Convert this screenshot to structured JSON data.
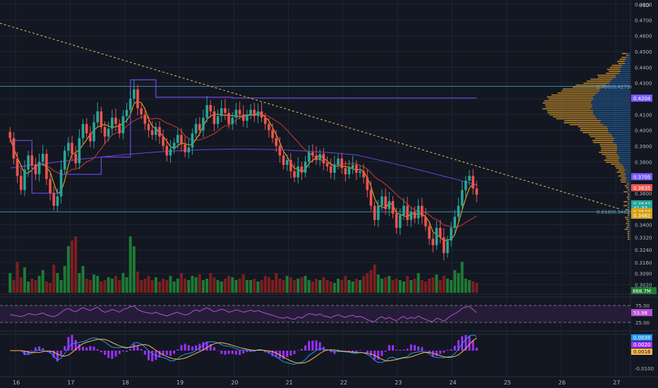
{
  "colors": {
    "background": "#131722",
    "grid": "#1f2433",
    "up": "#26a69a",
    "down": "#ef5350",
    "vol_up": "#1e7a33",
    "vol_down": "#7a1f1f",
    "vwap": "#6a45d9",
    "ma_fast": "#d4a017",
    "ma_slow": "#b3362e",
    "trendline": "#e8c547",
    "rsi": "#b74fd6",
    "macd": "#2196f3",
    "signal": "#ffb74d",
    "hist": "#9b30ff",
    "vp_up": "#2e7dcf",
    "vp_down": "#d99a2b",
    "fib": "#3f8ca6"
  },
  "chart_data": [
    {
      "type": "candlestick",
      "currency": "USD",
      "y_ticks": [
        "0.4800",
        "0.4700",
        "0.4600",
        "0.4500",
        "0.4400",
        "0.4300",
        "0.4200",
        "0.4100",
        "0.4000",
        "0.3900",
        "0.3800",
        "0.3700",
        "0.3600",
        "0.3500",
        "0.3400",
        "0.3320",
        "0.3240",
        "0.3160",
        "0.3090",
        "0.3020"
      ],
      "x_ticks": [
        "16",
        "17",
        "18",
        "19",
        "20",
        "21",
        "22",
        "23",
        "24",
        "25",
        "26",
        "27"
      ],
      "fib_levels": [
        {
          "label": "0.786(0.4279)",
          "price": 0.4279
        },
        {
          "label": "0.618(0.3482)",
          "price": 0.3482
        }
      ],
      "price_tags": [
        {
          "text": "0.4204",
          "kind": "vwap"
        },
        {
          "text": "0.3705",
          "kind": "vwap"
        },
        {
          "text": "0.3635",
          "kind": "last"
        },
        {
          "text": "0.3533",
          "kind": "up"
        },
        {
          "text": "41:33",
          "kind": "up"
        },
        {
          "text": "0.3527",
          "kind": "fast"
        },
        {
          "text": "0.3483",
          "kind": "fast"
        }
      ],
      "volume_tag": "868.7M",
      "close": [
        0.395,
        0.382,
        0.371,
        0.362,
        0.375,
        0.384,
        0.378,
        0.372,
        0.38,
        0.385,
        0.369,
        0.36,
        0.352,
        0.358,
        0.375,
        0.387,
        0.392,
        0.385,
        0.379,
        0.395,
        0.404,
        0.398,
        0.393,
        0.405,
        0.412,
        0.402,
        0.396,
        0.401,
        0.408,
        0.404,
        0.398,
        0.409,
        0.413,
        0.42,
        0.426,
        0.414,
        0.41,
        0.404,
        0.4,
        0.397,
        0.402,
        0.396,
        0.39,
        0.384,
        0.388,
        0.392,
        0.397,
        0.391,
        0.386,
        0.389,
        0.398,
        0.404,
        0.4,
        0.408,
        0.416,
        0.412,
        0.404,
        0.409,
        0.414,
        0.411,
        0.404,
        0.408,
        0.413,
        0.41,
        0.406,
        0.41,
        0.413,
        0.409,
        0.412,
        0.408,
        0.404,
        0.4,
        0.395,
        0.39,
        0.384,
        0.378,
        0.381,
        0.374,
        0.37,
        0.377,
        0.373,
        0.38,
        0.386,
        0.384,
        0.381,
        0.385,
        0.379,
        0.377,
        0.373,
        0.378,
        0.382,
        0.376,
        0.372,
        0.376,
        0.378,
        0.373,
        0.374,
        0.37,
        0.362,
        0.352,
        0.343,
        0.352,
        0.358,
        0.35,
        0.355,
        0.347,
        0.338,
        0.346,
        0.352,
        0.343,
        0.348,
        0.344,
        0.352,
        0.345,
        0.339,
        0.331,
        0.327,
        0.338,
        0.332,
        0.322,
        0.33,
        0.338,
        0.345,
        0.352,
        0.362,
        0.368,
        0.371,
        0.363,
        0.359
      ],
      "volume": [
        14,
        9,
        22,
        11,
        18,
        8,
        10,
        9,
        12,
        16,
        8,
        7,
        20,
        14,
        9,
        19,
        33,
        37,
        40,
        14,
        19,
        10,
        9,
        13,
        12,
        8,
        9,
        11,
        10,
        12,
        9,
        14,
        11,
        40,
        33,
        15,
        9,
        10,
        12,
        9,
        11,
        8,
        10,
        9,
        12,
        8,
        10,
        14,
        10,
        9,
        12,
        11,
        13,
        9,
        10,
        14,
        11,
        9,
        8,
        10,
        12,
        11,
        9,
        10,
        13,
        9,
        9,
        10,
        8,
        9,
        12,
        11,
        9,
        14,
        10,
        9,
        12,
        11,
        9,
        10,
        11,
        12,
        9,
        8,
        10,
        9,
        11,
        9,
        8,
        7,
        10,
        9,
        12,
        9,
        8,
        10,
        9,
        12,
        14,
        16,
        20,
        13,
        10,
        11,
        12,
        9,
        10,
        9,
        8,
        12,
        9,
        10,
        14,
        9,
        8,
        10,
        11,
        13,
        9,
        12,
        10,
        9,
        16,
        14,
        22,
        10,
        9,
        8,
        7
      ],
      "volume_ticks_note": "volume histogram at bottom of price pane"
    },
    {
      "type": "line",
      "indicator": "RSI",
      "y_ticks": [
        "75.00",
        "25.00"
      ],
      "value_tag": "53.98",
      "bands": [
        75,
        25
      ],
      "rsi": [
        48,
        46,
        44,
        42,
        45,
        51,
        49,
        47,
        50,
        53,
        47,
        44,
        42,
        46,
        55,
        62,
        66,
        60,
        56,
        63,
        69,
        64,
        60,
        66,
        70,
        60,
        55,
        58,
        63,
        60,
        55,
        63,
        66,
        71,
        74,
        63,
        58,
        55,
        53,
        51,
        55,
        50,
        47,
        44,
        48,
        52,
        55,
        50,
        47,
        49,
        57,
        62,
        58,
        64,
        68,
        63,
        56,
        60,
        64,
        61,
        55,
        58,
        62,
        59,
        55,
        58,
        61,
        57,
        60,
        56,
        52,
        49,
        46,
        42,
        39,
        37,
        41,
        36,
        34,
        41,
        38,
        45,
        51,
        49,
        46,
        50,
        44,
        42,
        39,
        44,
        48,
        43,
        40,
        44,
        46,
        41,
        43,
        39,
        33,
        29,
        27,
        37,
        42,
        35,
        40,
        34,
        30,
        38,
        43,
        35,
        40,
        37,
        44,
        38,
        34,
        29,
        27,
        38,
        34,
        28,
        37,
        45,
        51,
        57,
        66,
        70,
        72,
        63,
        54
      ]
    },
    {
      "type": "line",
      "indicator": "MACD",
      "y_ticks": [
        "0.0100",
        "-0.0100"
      ],
      "value_tags": [
        "0.0039",
        "0.0020",
        "0.0016"
      ]
    }
  ]
}
